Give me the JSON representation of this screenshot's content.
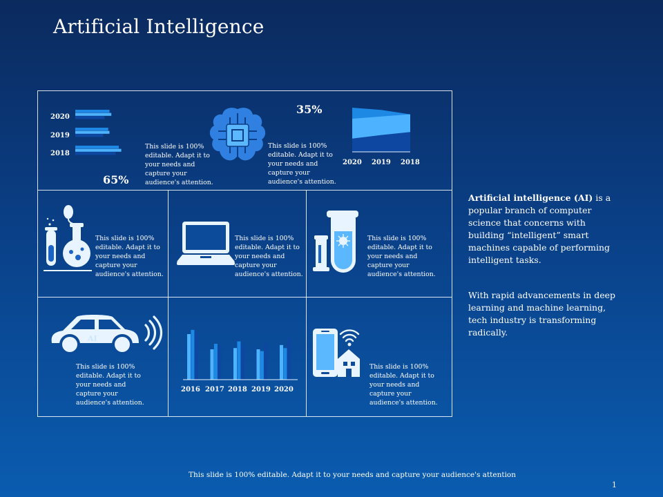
{
  "slide": {
    "title": "Artificial Intelligence",
    "footer": "This slide is 100% editable. Adapt it to your needs and capture your audience's attention",
    "page_number": "1"
  },
  "grid": {
    "top_left": {
      "year_labels": [
        "2020",
        "2019",
        "2018"
      ],
      "percent": "65%",
      "text": "This slide is 100% editable. Adapt it to your needs and capture your audience's attention."
    },
    "top_middle": {
      "icon": "brain-chip-icon",
      "percent": "35%",
      "text": "This slide is 100% editable. Adapt it to your needs and capture your audience's attention."
    },
    "top_right": {
      "year_labels": [
        "2020",
        "2019",
        "2018"
      ]
    },
    "mid_left": {
      "icon": "lab-flask-icon",
      "text": "This slide is 100% editable. Adapt it to your needs and capture your audience's attention."
    },
    "mid_center": {
      "icon": "laptop-icon",
      "text": "This slide is 100% editable. Adapt it to your needs and capture your audience's attention."
    },
    "mid_right": {
      "icon": "test-tube-icon",
      "text": "This slide is 100% editable. Adapt it to your needs and capture your audience's attention."
    },
    "bot_left": {
      "icon": "smart-car-icon",
      "car_label": "AI",
      "text": "This slide is 100% editable. Adapt it to your needs and capture your audience's attention."
    },
    "bot_center": {
      "year_labels": [
        "2016",
        "2017",
        "2018",
        "2019",
        "2020"
      ]
    },
    "bot_right": {
      "icon": "smart-home-phone-icon",
      "text": "This slide is 100% editable. Adapt it to your needs and capture your audience's attention."
    }
  },
  "side": {
    "bold_lead": "Artificial intelligence (AI)",
    "para1_rest": " is a popular branch of computer science that concerns with building “intelligent” smart machines capable of performing intelligent tasks.",
    "para2": "With rapid advancements in deep learning and machine learning, tech industry is transforming radically."
  },
  "colors": {
    "bg_top": "#0b2a5e",
    "bg_bottom": "#0a5cb0",
    "light_blue": "#4db2ff",
    "mid_blue": "#1e88e5",
    "dark_blue": "#0d47a1",
    "icon_white": "#e8f4ff"
  },
  "chart_data": [
    {
      "type": "bar",
      "orientation": "horizontal",
      "categories": [
        "2020",
        "2019",
        "2018"
      ],
      "series": [
        {
          "values": [
            55,
            53,
            70
          ]
        },
        {
          "values": [
            58,
            55,
            74
          ]
        },
        {
          "values": [
            47,
            45,
            65
          ]
        }
      ]
    },
    {
      "type": "area",
      "categories": [
        "2020",
        "2019",
        "2018"
      ],
      "series": [
        {
          "values": [
            100,
            95,
            85
          ]
        },
        {
          "values": [
            75,
            80,
            85
          ]
        },
        {
          "values": [
            30,
            38,
            45
          ]
        }
      ]
    },
    {
      "type": "bar",
      "categories": [
        "2016",
        "2017",
        "2018",
        "2019",
        "2020"
      ],
      "series": [
        {
          "values": [
            75,
            50,
            52,
            50,
            57
          ]
        },
        {
          "values": [
            82,
            59,
            63,
            47,
            52
          ]
        },
        {
          "values": [
            78,
            56,
            58,
            60,
            69
          ]
        }
      ]
    }
  ]
}
